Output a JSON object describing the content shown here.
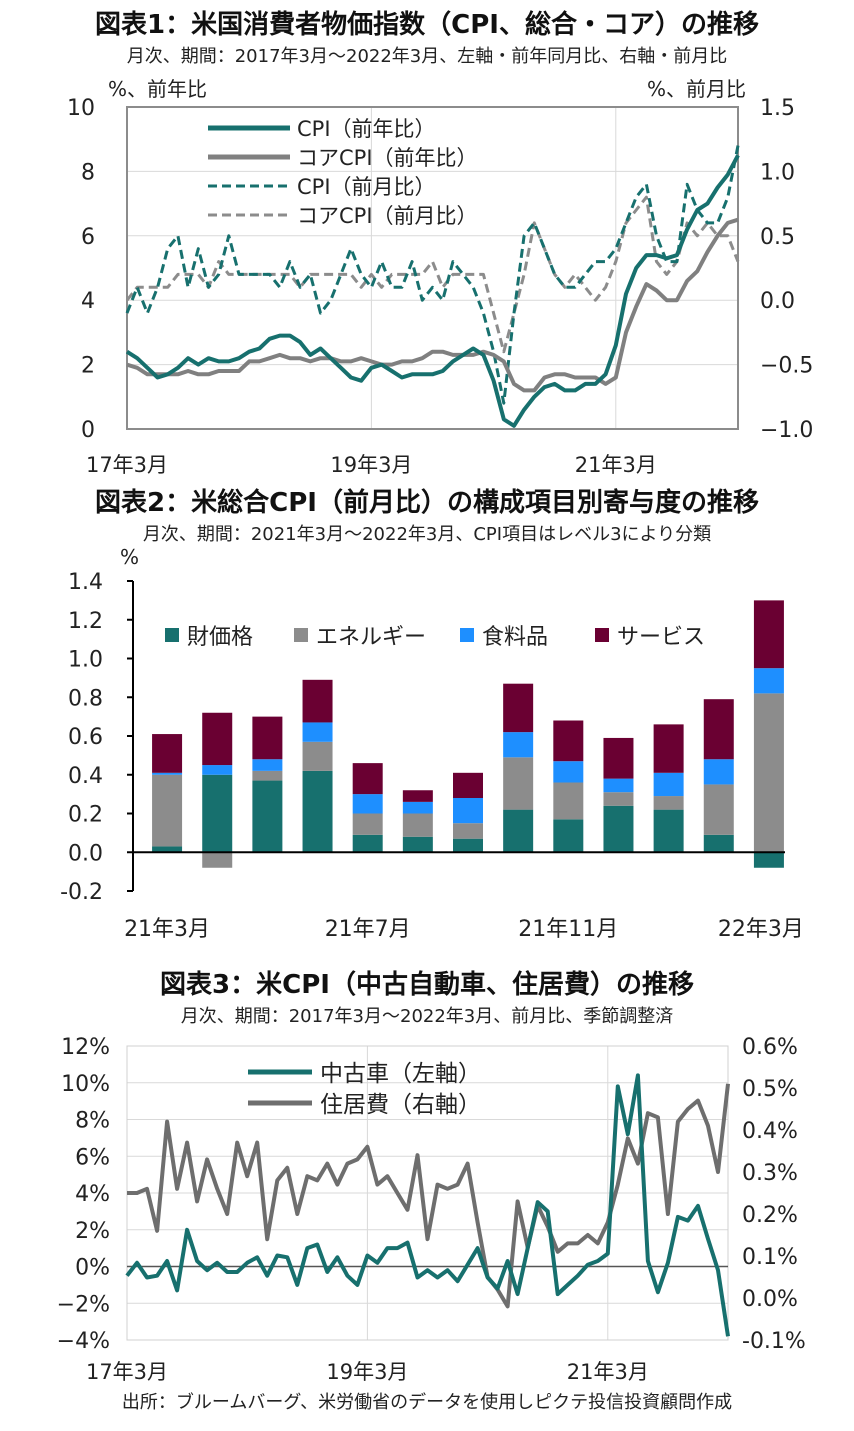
{
  "chart_data": [
    {
      "type": "line",
      "title": "図表1：米国消費者物価指数（CPI、総合・コア）の推移",
      "subtitle": "月次、期間：2017年3月～2022年3月、左軸・前年同月比、右軸・前月比",
      "y_left_unit": "%、前年比",
      "y_right_unit": "%、前月比",
      "y_left_ticks": [
        "10",
        "8",
        "6",
        "4",
        "2",
        "0"
      ],
      "y_right_ticks": [
        "1.5",
        "1.0",
        "0.5",
        "0.0",
        "−0.5",
        "−1.0"
      ],
      "ylim_left": [
        0,
        10
      ],
      "ylim_right": [
        -1.0,
        1.5
      ],
      "x_tick_labels": [
        "17年3月",
        "19年3月",
        "21年3月"
      ],
      "x_start": "2017-03",
      "x_end": "2022-03",
      "series": [
        {
          "name": "CPI（前年比）",
          "axis": "left",
          "style": "solid",
          "color": "#17706e",
          "values": [
            2.4,
            2.2,
            1.9,
            1.6,
            1.7,
            1.9,
            2.2,
            2.0,
            2.2,
            2.1,
            2.1,
            2.2,
            2.4,
            2.5,
            2.8,
            2.9,
            2.9,
            2.7,
            2.3,
            2.5,
            2.2,
            1.9,
            1.6,
            1.5,
            1.9,
            2.0,
            1.8,
            1.6,
            1.7,
            1.7,
            1.7,
            1.8,
            2.1,
            2.3,
            2.5,
            2.3,
            1.5,
            0.3,
            0.1,
            0.6,
            1.0,
            1.3,
            1.4,
            1.2,
            1.2,
            1.4,
            1.4,
            1.7,
            2.6,
            4.2,
            5.0,
            5.4,
            5.4,
            5.3,
            5.4,
            6.2,
            6.8,
            7.0,
            7.5,
            7.9,
            8.5
          ]
        },
        {
          "name": "コアCPI（前年比）",
          "axis": "left",
          "style": "solid",
          "color": "#808080",
          "values": [
            2.0,
            1.9,
            1.7,
            1.7,
            1.7,
            1.7,
            1.8,
            1.7,
            1.7,
            1.8,
            1.8,
            1.8,
            2.1,
            2.1,
            2.2,
            2.3,
            2.2,
            2.2,
            2.1,
            2.2,
            2.2,
            2.1,
            2.1,
            2.2,
            2.1,
            2.0,
            2.0,
            2.1,
            2.1,
            2.2,
            2.4,
            2.4,
            2.3,
            2.3,
            2.3,
            2.4,
            2.3,
            2.1,
            1.4,
            1.2,
            1.2,
            1.6,
            1.7,
            1.7,
            1.6,
            1.6,
            1.6,
            1.4,
            1.6,
            3.0,
            3.8,
            4.5,
            4.3,
            4.0,
            4.0,
            4.6,
            4.9,
            5.5,
            6.0,
            6.4,
            6.5
          ]
        },
        {
          "name": "CPI（前月比）",
          "axis": "right",
          "style": "dashed",
          "color": "#17706e",
          "values": [
            -0.1,
            0.1,
            -0.1,
            0.1,
            0.4,
            0.5,
            0.1,
            0.4,
            0.1,
            0.2,
            0.5,
            0.2,
            0.2,
            0.2,
            0.2,
            0.1,
            0.3,
            0.1,
            0.2,
            -0.1,
            0.0,
            0.2,
            0.4,
            0.2,
            0.1,
            0.3,
            0.1,
            0.1,
            0.3,
            0.0,
            0.1,
            0.0,
            0.3,
            0.2,
            0.1,
            -0.1,
            -0.4,
            -0.8,
            -0.1,
            0.5,
            0.6,
            0.4,
            0.2,
            0.1,
            0.1,
            0.2,
            0.3,
            0.3,
            0.4,
            0.6,
            0.8,
            0.9,
            0.5,
            0.3,
            0.3,
            0.9,
            0.7,
            0.6,
            0.6,
            0.8,
            1.2
          ]
        },
        {
          "name": "コアCPI（前月比）",
          "axis": "right",
          "style": "dashed",
          "color": "#8c8c8c",
          "values": [
            0.0,
            0.1,
            0.1,
            0.1,
            0.1,
            0.2,
            0.2,
            0.2,
            0.1,
            0.3,
            0.2,
            0.2,
            0.2,
            0.2,
            0.2,
            0.2,
            0.2,
            0.1,
            0.2,
            0.2,
            0.2,
            0.2,
            0.2,
            0.1,
            0.2,
            0.1,
            0.2,
            0.2,
            0.2,
            0.2,
            0.3,
            0.1,
            0.2,
            0.2,
            0.2,
            0.2,
            -0.1,
            -0.4,
            -0.1,
            0.2,
            0.6,
            0.4,
            0.2,
            0.1,
            0.2,
            0.1,
            0.0,
            0.1,
            0.3,
            0.6,
            0.7,
            0.8,
            0.3,
            0.2,
            0.3,
            0.6,
            0.5,
            0.6,
            0.5,
            0.5,
            0.3
          ]
        }
      ]
    },
    {
      "type": "bar",
      "stacked": true,
      "title": "図表2：米総合CPI（前月比）の構成項目別寄与度の推移",
      "subtitle": "月次、期間：2021年3月～2022年3月、CPI項目はレベル3により分類",
      "y_unit": "%",
      "ylim": [
        -0.2,
        1.4
      ],
      "y_ticks": [
        "1.4",
        "1.2",
        "1.0",
        "0.8",
        "0.6",
        "0.4",
        "0.2",
        "0.0",
        "-0.2"
      ],
      "categories": [
        "21年3月",
        "21年4月",
        "21年5月",
        "21年6月",
        "21年7月",
        "21年8月",
        "21年9月",
        "21年10月",
        "21年11月",
        "21年12月",
        "22年1月",
        "22年2月",
        "22年3月"
      ],
      "x_tick_labels": [
        "21年3月",
        "21年7月",
        "21年11月",
        "22年3月"
      ],
      "series": [
        {
          "name": "財価格",
          "color": "#17706e",
          "values": [
            0.03,
            0.4,
            0.37,
            0.42,
            0.09,
            0.08,
            0.07,
            0.22,
            0.17,
            0.24,
            0.22,
            0.09,
            -0.08
          ]
        },
        {
          "name": "エネルギー",
          "color": "#8c8c8c",
          "values": [
            0.37,
            -0.08,
            0.05,
            0.15,
            0.11,
            0.12,
            0.08,
            0.27,
            0.19,
            0.07,
            0.07,
            0.26,
            0.82
          ]
        },
        {
          "name": "食料品",
          "color": "#1e8fff",
          "values": [
            0.01,
            0.05,
            0.06,
            0.1,
            0.1,
            0.06,
            0.13,
            0.13,
            0.11,
            0.07,
            0.12,
            0.13,
            0.13
          ]
        },
        {
          "name": "サービス",
          "color": "#6a0032",
          "values": [
            0.2,
            0.27,
            0.22,
            0.22,
            0.16,
            0.06,
            0.13,
            0.25,
            0.21,
            0.21,
            0.25,
            0.31,
            0.35
          ]
        }
      ]
    },
    {
      "type": "line",
      "title": "図表3：米CPI（中古自動車、住居費）の推移",
      "subtitle": "月次、期間：2017年3月～2022年3月、前月比、季節調整済",
      "y_left_ticks": [
        "12%",
        "10%",
        "8%",
        "6%",
        "4%",
        "2%",
        "0%",
        "−2%",
        "−4%"
      ],
      "y_right_ticks": [
        "0.6%",
        "0.5%",
        "0.4%",
        "0.3%",
        "0.2%",
        "0.1%",
        "0.0%",
        "-0.1%"
      ],
      "ylim_left": [
        -4,
        12
      ],
      "ylim_right": [
        -0.1,
        0.6
      ],
      "x_tick_labels": [
        "17年3月",
        "19年3月",
        "21年3月"
      ],
      "x_start": "2017-03",
      "x_end": "2022-03",
      "series": [
        {
          "name": "中古車（左軸）",
          "axis": "left",
          "color": "#17706e",
          "values": [
            -0.5,
            0.2,
            -0.6,
            -0.5,
            0.3,
            -1.3,
            2.0,
            0.3,
            -0.2,
            0.2,
            -0.3,
            -0.3,
            0.2,
            0.5,
            -0.5,
            0.6,
            0.5,
            -1.0,
            1.0,
            1.2,
            -0.3,
            0.5,
            -0.5,
            -1.0,
            0.6,
            0.2,
            1.0,
            1.0,
            1.3,
            -0.6,
            -0.2,
            -0.6,
            -0.2,
            -0.8,
            0.1,
            1.0,
            -0.6,
            -1.2,
            0.3,
            -1.5,
            1.0,
            3.5,
            3.0,
            -1.5,
            -1.0,
            -0.5,
            0.1,
            0.3,
            0.7,
            9.8,
            7.2,
            10.4,
            0.3,
            -1.4,
            0.2,
            2.7,
            2.5,
            3.3,
            1.5,
            -0.2,
            -3.8
          ]
        },
        {
          "name": "住居費（右軸）",
          "axis": "right",
          "color": "#6e6e6e",
          "values": [
            0.25,
            0.25,
            0.26,
            0.16,
            0.42,
            0.26,
            0.37,
            0.23,
            0.33,
            0.26,
            0.2,
            0.37,
            0.29,
            0.37,
            0.14,
            0.28,
            0.31,
            0.2,
            0.29,
            0.28,
            0.32,
            0.27,
            0.32,
            0.33,
            0.36,
            0.27,
            0.29,
            0.25,
            0.21,
            0.34,
            0.14,
            0.27,
            0.26,
            0.27,
            0.32,
            0.18,
            0.05,
            0.02,
            -0.02,
            0.23,
            0.12,
            0.22,
            0.17,
            0.11,
            0.13,
            0.13,
            0.15,
            0.13,
            0.18,
            0.27,
            0.38,
            0.32,
            0.44,
            0.43,
            0.2,
            0.42,
            0.45,
            0.47,
            0.41,
            0.3,
            0.51
          ]
        }
      ]
    }
  ],
  "source": "出所：ブルームバーグ、米労働省のデータを使用しピクテ投信投資顧問作成"
}
